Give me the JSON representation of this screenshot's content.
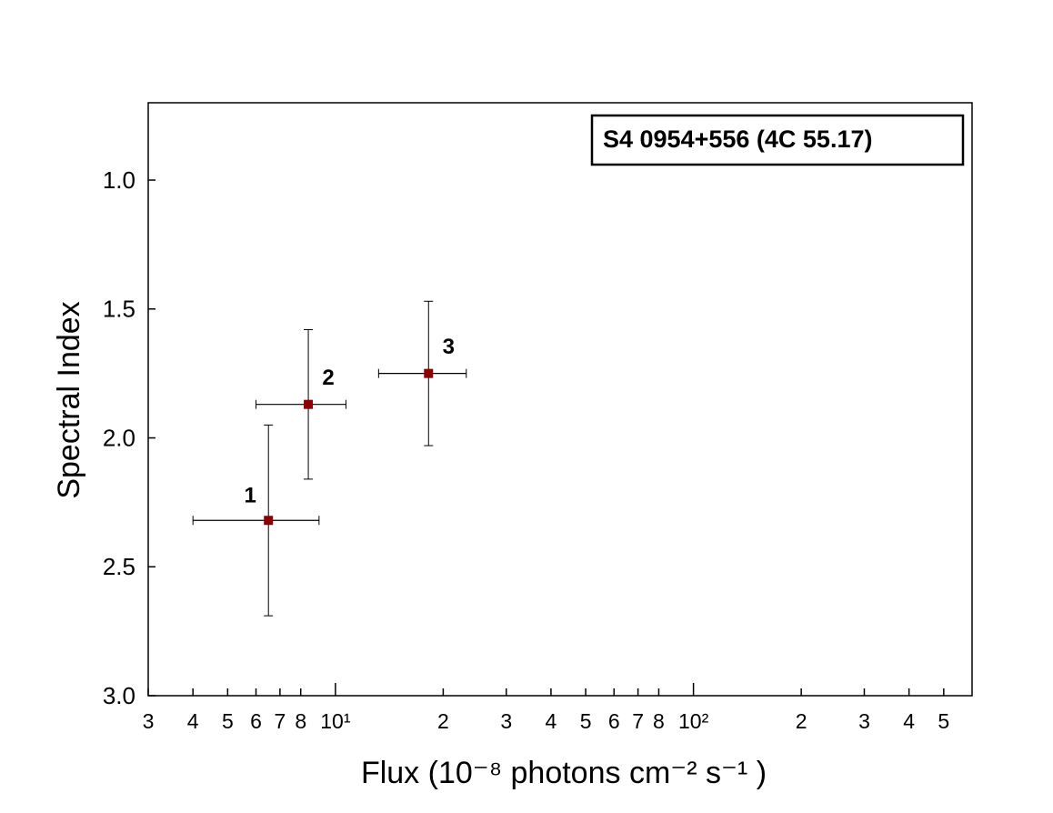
{
  "chart_data": {
    "type": "scatter",
    "annotation": "S4 0954+556 (4C 55.17)",
    "x_label": "Flux  (10⁻⁸ photons  cm⁻² s⁻¹ )",
    "y_label": "Spectral Index",
    "log_x": true,
    "xlim": [
      3,
      600
    ],
    "ylim": [
      3.0,
      0.7
    ],
    "xticks": [
      3,
      4,
      5,
      6,
      7,
      8,
      {
        "value": 10,
        "label": "10¹"
      },
      {
        "value": 20,
        "label": "2"
      },
      {
        "value": 30,
        "label": "3"
      },
      {
        "value": 40,
        "label": "4"
      },
      {
        "value": 50,
        "label": "5"
      },
      {
        "value": 60,
        "label": "6"
      },
      {
        "value": 70,
        "label": "7"
      },
      {
        "value": 80,
        "label": "8"
      },
      {
        "value": 100,
        "label": "10²"
      },
      {
        "value": 200,
        "label": "2"
      },
      {
        "value": 300,
        "label": "3"
      },
      {
        "value": 400,
        "label": "4"
      },
      {
        "value": 500,
        "label": "5"
      }
    ],
    "yticks": [
      {
        "value": 1,
        "label": "1.0"
      },
      1.5,
      {
        "value": 2,
        "label": "2.0"
      },
      2.5,
      {
        "value": 3,
        "label": "3.0"
      }
    ],
    "series": [
      {
        "color": "#8b0000",
        "point_labels": [
          "1",
          "2",
          "3"
        ],
        "x": [
          6.5,
          8.4,
          18.2
        ],
        "x_low": [
          4.0,
          6.0,
          13.2
        ],
        "x_high": [
          9.0,
          10.7,
          23.2
        ],
        "y": [
          2.32,
          1.87,
          1.75
        ],
        "y_low": [
          1.95,
          1.58,
          1.47
        ],
        "y_high": [
          2.69,
          2.16,
          2.03
        ]
      }
    ]
  }
}
